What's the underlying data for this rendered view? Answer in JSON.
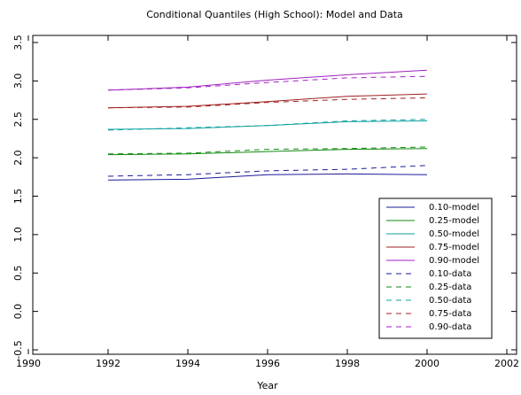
{
  "chart_data": {
    "type": "line",
    "title": "Conditional Quantiles (High School): Model and Data",
    "x_label": "Year",
    "x": [
      1992,
      1994,
      1996,
      1998,
      2000
    ],
    "xlim": [
      1990,
      2002
    ],
    "xticks": [
      1990,
      1992,
      1994,
      1996,
      1998,
      2000,
      2002
    ],
    "ylim": [
      -0.5,
      3.5
    ],
    "yticks": [
      {
        "value": -0.5,
        "label": "-0.5"
      },
      {
        "value": 0,
        "label": "0.0"
      },
      0.5,
      {
        "value": 1,
        "label": "1.0"
      },
      1.5,
      {
        "value": 2,
        "label": "2.0"
      },
      2.5,
      {
        "value": 3,
        "label": "3.0"
      },
      3.5
    ],
    "legend": "lower right",
    "series": [
      {
        "name": "0.10-model",
        "color": "#1a1a9a",
        "dashed": false,
        "values": [
          1.71,
          1.72,
          1.78,
          1.79,
          1.78
        ]
      },
      {
        "name": "0.25-model",
        "color": "#108a10",
        "dashed": false,
        "values": [
          2.04,
          2.05,
          2.08,
          2.11,
          2.12
        ]
      },
      {
        "name": "0.50-model",
        "color": "#10a0a0",
        "dashed": false,
        "values": [
          2.37,
          2.38,
          2.42,
          2.47,
          2.48
        ]
      },
      {
        "name": "0.75-model",
        "color": "#a02020",
        "dashed": false,
        "values": [
          2.65,
          2.67,
          2.73,
          2.8,
          2.83
        ]
      },
      {
        "name": "0.90-model",
        "color": "#a020c0",
        "dashed": false,
        "values": [
          2.88,
          2.92,
          3.01,
          3.08,
          3.14
        ]
      },
      {
        "name": "0.10-data",
        "color": "#1a1a9a",
        "dashed": true,
        "values": [
          1.76,
          1.78,
          1.83,
          1.85,
          1.9
        ]
      },
      {
        "name": "0.25-data",
        "color": "#108a10",
        "dashed": true,
        "values": [
          2.05,
          2.06,
          2.11,
          2.12,
          2.14
        ]
      },
      {
        "name": "0.50-data",
        "color": "#10a0a0",
        "dashed": true,
        "values": [
          2.36,
          2.39,
          2.42,
          2.48,
          2.5
        ]
      },
      {
        "name": "0.75-data",
        "color": "#a02020",
        "dashed": true,
        "values": [
          2.65,
          2.66,
          2.72,
          2.76,
          2.78
        ]
      },
      {
        "name": "0.90-data",
        "color": "#a020c0",
        "dashed": true,
        "values": [
          2.88,
          2.91,
          2.98,
          3.04,
          3.06
        ]
      }
    ]
  }
}
